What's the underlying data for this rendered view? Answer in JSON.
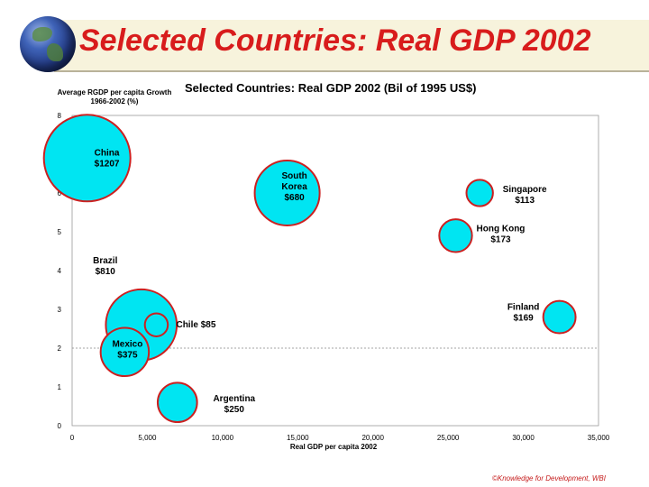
{
  "page": {
    "title": "Selected Countries: Real GDP 2002",
    "credit": "©Knowledge for Development, WBI"
  },
  "chart_data": {
    "type": "scatter",
    "title": "Selected Countries: Real GDP 2002 (Bil of 1995 US$)",
    "xlabel": "Real GDP per capita 2002",
    "ylabel": "Average RGDP per capita Growth 1966-2002 (%)",
    "xlim": [
      0,
      35000
    ],
    "ylim": [
      0,
      8
    ],
    "x_ticks": [
      "0",
      "5,000",
      "10,000",
      "15,000",
      "20,000",
      "25,000",
      "30,000",
      "35,000"
    ],
    "y_ticks": [
      "0",
      "1",
      "2",
      "3",
      "4",
      "5",
      "6",
      "7",
      "8"
    ],
    "reference_line_y": 2,
    "colors": {
      "fill": "#00e5f2",
      "stroke": "#cc2020"
    },
    "points": [
      {
        "country": "China",
        "value": "$1207",
        "gdp": 1207,
        "x": 1000,
        "y": 6.9
      },
      {
        "country": "South Korea",
        "value": "$680",
        "gdp": 680,
        "x": 14300,
        "y": 6.0
      },
      {
        "country": "Singapore",
        "value": "$113",
        "gdp": 113,
        "x": 27100,
        "y": 6.0
      },
      {
        "country": "Hong Kong",
        "value": "$173",
        "gdp": 173,
        "x": 25500,
        "y": 4.9
      },
      {
        "country": "Brazil",
        "value": "$810",
        "gdp": 810,
        "x": 4600,
        "y": 2.6
      },
      {
        "country": "Chile",
        "value": "$85",
        "gdp": 85,
        "x": 5600,
        "y": 2.6
      },
      {
        "country": "Mexico",
        "value": "$375",
        "gdp": 375,
        "x": 3500,
        "y": 1.9
      },
      {
        "country": "Argentina",
        "value": "$250",
        "gdp": 250,
        "x": 7000,
        "y": 0.6
      },
      {
        "country": "Finland",
        "value": "$169",
        "gdp": 169,
        "x": 32400,
        "y": 2.8
      }
    ]
  }
}
